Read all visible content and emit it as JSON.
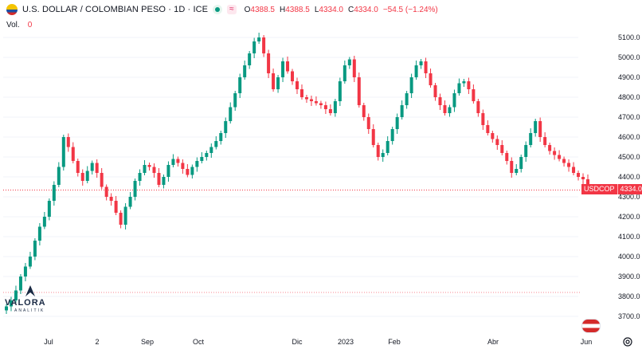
{
  "header": {
    "symbol_title": "U.S. DOLLAR / COLOMBIAN PESO · 1D · ICE",
    "wave_label": "≈",
    "ohlc": {
      "open_label": "O",
      "open": "4388.5",
      "high_label": "H",
      "high": "4388.5",
      "low_label": "L",
      "low": "4334.0",
      "close_label": "C",
      "close": "4334.0",
      "change": "−54.5 (−1.24%)"
    },
    "volume_label": "Vol.",
    "volume_value": "0"
  },
  "price_tag": {
    "symbol": "USDCOP",
    "value": "4334.0"
  },
  "logo": {
    "name": "VALORA",
    "sub": "ANALITIK"
  },
  "colors": {
    "up": "#089981",
    "down": "#f23645",
    "grid": "#f0f3fa",
    "last_price_line": "#f23645"
  },
  "chart_data": {
    "type": "candlestick",
    "y_axis": {
      "min": 3700,
      "max": 5100,
      "ticks": [
        3700,
        3800,
        3900,
        4000,
        4100,
        4200,
        4300,
        4400,
        4500,
        4600,
        4700,
        4800,
        4900,
        5000,
        5100
      ]
    },
    "x_axis": {
      "labels": [
        "Jul",
        "2",
        "Sep",
        "Oct",
        "Dic",
        "2023",
        "Feb",
        "Abr",
        "Jun"
      ]
    },
    "last_price": 4334.0,
    "reference_line": 3820,
    "series_close": [
      3750,
      3780,
      3830,
      3900,
      3950,
      4000,
      4080,
      4150,
      4200,
      4280,
      4360,
      4450,
      4600,
      4550,
      4480,
      4420,
      4380,
      4430,
      4470,
      4420,
      4350,
      4300,
      4280,
      4220,
      4160,
      4250,
      4300,
      4380,
      4420,
      4460,
      4450,
      4420,
      4360,
      4400,
      4460,
      4490,
      4470,
      4440,
      4410,
      4450,
      4480,
      4500,
      4520,
      4550,
      4580,
      4620,
      4680,
      4750,
      4820,
      4900,
      4960,
      5020,
      5080,
      5100,
      5020,
      4920,
      4840,
      4900,
      4980,
      4930,
      4880,
      4840,
      4800,
      4790,
      4780,
      4770,
      4760,
      4740,
      4720,
      4780,
      4880,
      4960,
      4990,
      4900,
      4760,
      4700,
      4640,
      4560,
      4500,
      4520,
      4580,
      4640,
      4700,
      4760,
      4820,
      4900,
      4960,
      4980,
      4920,
      4860,
      4800,
      4760,
      4720,
      4750,
      4820,
      4870,
      4880,
      4840,
      4780,
      4720,
      4660,
      4620,
      4590,
      4560,
      4520,
      4480,
      4420,
      4440,
      4500,
      4560,
      4620,
      4680,
      4600,
      4560,
      4530,
      4510,
      4490,
      4470,
      4450,
      4420,
      4400,
      4388,
      4334
    ]
  }
}
